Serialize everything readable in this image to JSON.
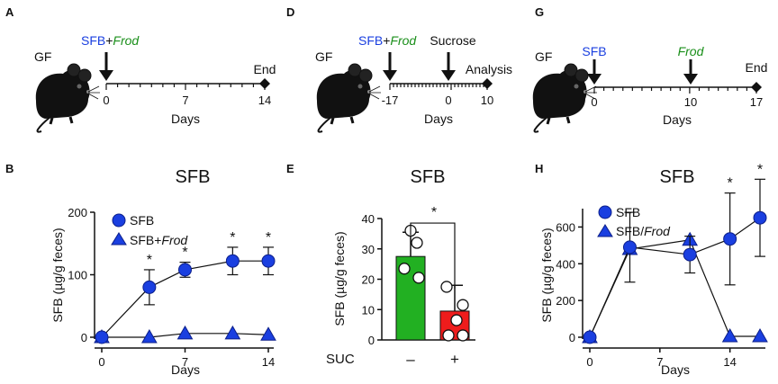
{
  "colors": {
    "blue": "#1a3fe0",
    "green": "#1a8f1a",
    "bar_green": "#22b022",
    "bar_red": "#ee1c1c"
  },
  "panels": {
    "A": {
      "label": "A",
      "mouse": "GF",
      "arrow1_part1": "SFB",
      "arrow1_plus": "+",
      "arrow1_part2": "Frod",
      "end_label": "End",
      "ticks": [
        "0",
        "7",
        "14"
      ],
      "xlabel": "Days"
    },
    "D": {
      "label": "D",
      "mouse": "GF",
      "arrow1_part1": "SFB",
      "arrow1_plus": "+",
      "arrow1_part2": "Frod",
      "arrow2_label": "Sucrose",
      "end_label": "Analysis",
      "ticks": [
        "-17",
        "0",
        "10"
      ],
      "xlabel": "Days"
    },
    "G": {
      "label": "G",
      "mouse": "GF",
      "arrow1_label": "SFB",
      "arrow2_label": "Frod",
      "end_label": "End",
      "ticks": [
        "0",
        "10",
        "17"
      ],
      "xlabel": "Days"
    },
    "B": {
      "label": "B"
    },
    "E": {
      "label": "E"
    },
    "H": {
      "label": "H"
    }
  },
  "chart_data": [
    {
      "panel": "B",
      "type": "line",
      "title": "SFB",
      "xlabel": "Days",
      "ylabel": "SFB (µg/g feces)",
      "xlim": [
        0,
        14
      ],
      "ylim": [
        0,
        200
      ],
      "xticks": [
        "0",
        "7",
        "14"
      ],
      "yticks": [
        "0",
        "100",
        "200"
      ],
      "legend_position": "top-left",
      "series": [
        {
          "name_part1": "SFB",
          "name_part2": "",
          "marker": "circle",
          "x": [
            0,
            4,
            7,
            11,
            14
          ],
          "y": [
            0,
            80,
            108,
            122,
            122
          ],
          "err": [
            0,
            28,
            12,
            22,
            22
          ]
        },
        {
          "name_part1": "SFB+",
          "name_part2": "Frod",
          "marker": "triangle",
          "x": [
            0,
            4,
            7,
            11,
            14
          ],
          "y": [
            0,
            0,
            6,
            6,
            4
          ],
          "err": [
            0,
            0,
            0,
            0,
            0
          ]
        }
      ],
      "annotations": [
        {
          "x": 4,
          "text": "*"
        },
        {
          "x": 7,
          "text": "*"
        },
        {
          "x": 11,
          "text": "*"
        },
        {
          "x": 14,
          "text": "*"
        }
      ]
    },
    {
      "panel": "E",
      "type": "bar",
      "title": "SFB",
      "ylabel": "SFB (µg/g feces)",
      "ylim": [
        0,
        40
      ],
      "yticks": [
        "0",
        "10",
        "20",
        "30",
        "40"
      ],
      "row_label": "SUC",
      "categories": [
        "–",
        "+"
      ],
      "values": [
        27.5,
        9.5
      ],
      "err": [
        8,
        8.5
      ],
      "points": [
        [
          36,
          32,
          23.5,
          20.5
        ],
        [
          17.5,
          11.5,
          6.5,
          1.5,
          1.5
        ]
      ],
      "significance": "*"
    },
    {
      "panel": "H",
      "type": "line",
      "title": "SFB",
      "xlabel": "Days",
      "ylabel": "SFB (µg/g feces)",
      "xlim": [
        0,
        17
      ],
      "ylim": [
        0,
        700
      ],
      "xticks": [
        "0",
        "7",
        "14"
      ],
      "yticks": [
        "0",
        "200",
        "400",
        "600"
      ],
      "legend_position": "top-left",
      "series": [
        {
          "name_part1": "SFB",
          "name_part2": "",
          "marker": "circle",
          "x": [
            0,
            4,
            10,
            14,
            17
          ],
          "y": [
            0,
            490,
            450,
            535,
            650
          ],
          "err": [
            0,
            190,
            100,
            250,
            210
          ]
        },
        {
          "name_part1": "SFB/",
          "name_part2": "Frod",
          "marker": "triangle",
          "x": [
            0,
            4,
            10,
            14,
            17
          ],
          "y": [
            0,
            480,
            530,
            5,
            5
          ],
          "err": [
            0,
            0,
            0,
            0,
            0
          ]
        }
      ],
      "annotations": [
        {
          "x": 14,
          "text": "*"
        },
        {
          "x": 17,
          "text": "*"
        }
      ]
    }
  ]
}
